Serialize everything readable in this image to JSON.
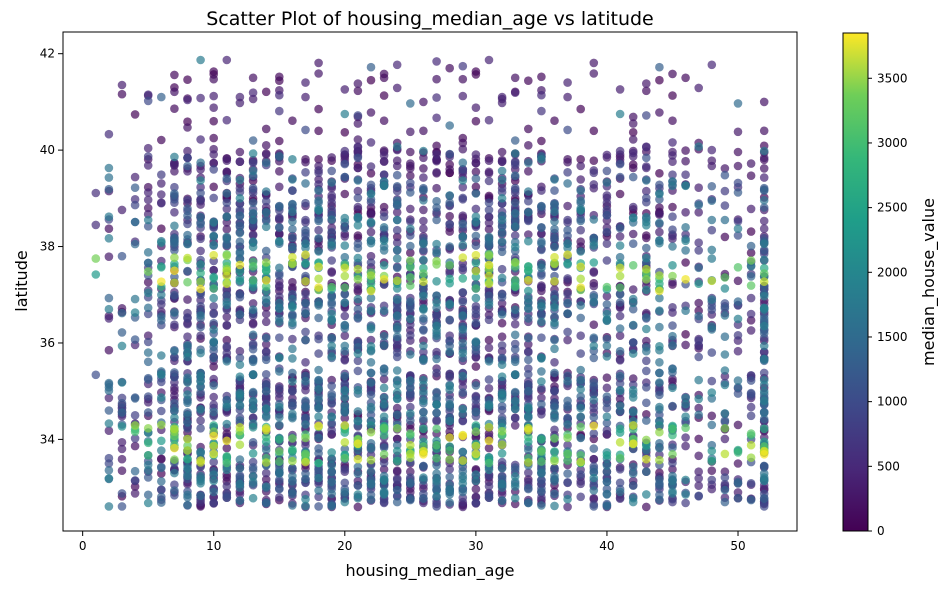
{
  "chart_data": {
    "type": "scatter",
    "title": "Scatter Plot of housing_median_age vs latitude",
    "xlabel": "housing_median_age",
    "ylabel": "latitude",
    "xlim": [
      -1.5,
      54.5
    ],
    "ylim": [
      32.1,
      42.45
    ],
    "xticks": [
      0,
      10,
      20,
      30,
      40,
      50
    ],
    "yticks": [
      34,
      36,
      38,
      40,
      42
    ],
    "grid": false,
    "colorbar": {
      "label": "median_house_value",
      "colormap": "viridis",
      "range": [
        0,
        3850
      ],
      "ticks": [
        0,
        500,
        1000,
        1500,
        2000,
        2500,
        3000,
        3500
      ]
    },
    "marker_alpha": 0.7,
    "x_range_observed": [
      1,
      52
    ],
    "y_range_observed": [
      32.6,
      41.95
    ],
    "high_value_bands_latitude": [
      33.9,
      37.45
    ]
  }
}
